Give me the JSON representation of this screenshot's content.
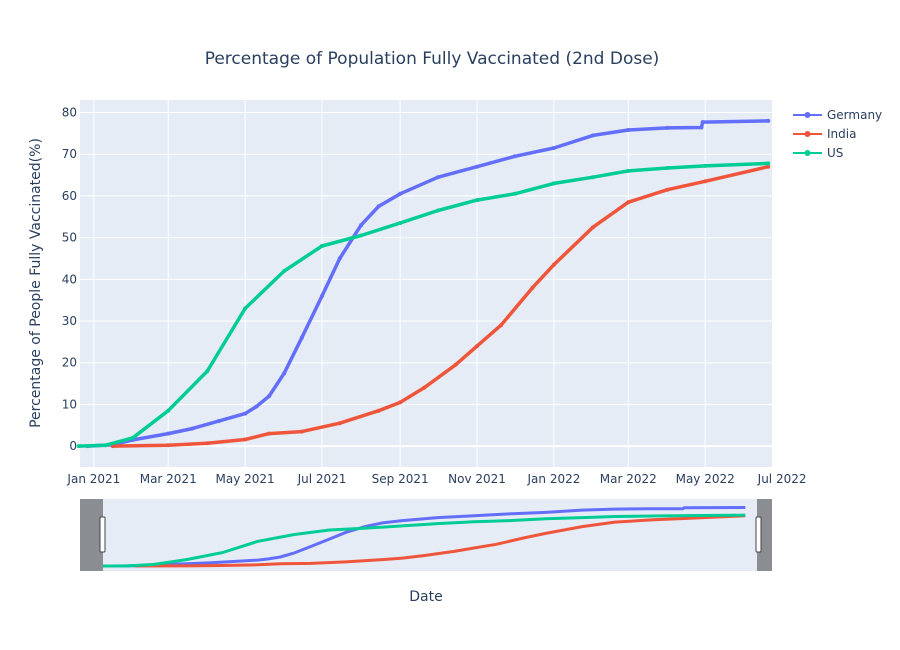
{
  "chart_data": {
    "type": "line",
    "title": "Percentage of Population Fully Vaccinated (2nd Dose)",
    "xlabel": "Date",
    "ylabel": "Percentage of People Fully Vaccinated(%)",
    "x_type": "date",
    "xlim": [
      "2020-12-21",
      "2022-06-23"
    ],
    "ylim": [
      -5,
      83
    ],
    "x_ticks": [
      "2021-01-01",
      "2021-03-01",
      "2021-05-01",
      "2021-07-01",
      "2021-09-01",
      "2021-11-01",
      "2022-01-01",
      "2022-03-01",
      "2022-05-01",
      "2022-07-01"
    ],
    "x_tick_labels": [
      "Jan 2021",
      "Mar 2021",
      "May 2021",
      "Jul 2021",
      "Sep 2021",
      "Nov 2021",
      "Jan 2022",
      "Mar 2022",
      "May 2022",
      "Jul 2022"
    ],
    "y_ticks": [
      0,
      10,
      20,
      30,
      40,
      50,
      60,
      70,
      80
    ],
    "y_tick_labels": [
      "0",
      "10",
      "20",
      "30",
      "40",
      "50",
      "60",
      "70",
      "80"
    ],
    "grid": true,
    "legend_position": "top-right",
    "range_slider": true,
    "series": [
      {
        "name": "Germany",
        "color": "#636efa",
        "points": [
          [
            "2020-12-27",
            0
          ],
          [
            "2021-01-15",
            0.3
          ],
          [
            "2021-02-01",
            1.5
          ],
          [
            "2021-03-01",
            3.0
          ],
          [
            "2021-03-20",
            4.2
          ],
          [
            "2021-04-10",
            6.0
          ],
          [
            "2021-05-01",
            7.8
          ],
          [
            "2021-05-10",
            9.5
          ],
          [
            "2021-05-20",
            12.0
          ],
          [
            "2021-06-01",
            17.5
          ],
          [
            "2021-06-15",
            26.0
          ],
          [
            "2021-07-01",
            36.0
          ],
          [
            "2021-07-15",
            45.0
          ],
          [
            "2021-08-01",
            53.0
          ],
          [
            "2021-08-15",
            57.5
          ],
          [
            "2021-09-01",
            60.5
          ],
          [
            "2021-10-01",
            64.5
          ],
          [
            "2021-11-01",
            67.0
          ],
          [
            "2021-12-01",
            69.5
          ],
          [
            "2022-01-01",
            71.5
          ],
          [
            "2022-02-01",
            74.5
          ],
          [
            "2022-03-01",
            75.8
          ],
          [
            "2022-04-01",
            76.3
          ],
          [
            "2022-04-28",
            76.4
          ],
          [
            "2022-04-29",
            77.7
          ],
          [
            "2022-06-20",
            78.0
          ]
        ]
      },
      {
        "name": "India",
        "color": "#ef553b",
        "points": [
          [
            "2021-01-16",
            0
          ],
          [
            "2021-03-01",
            0.2
          ],
          [
            "2021-04-01",
            0.7
          ],
          [
            "2021-05-01",
            1.6
          ],
          [
            "2021-05-20",
            3.0
          ],
          [
            "2021-06-15",
            3.5
          ],
          [
            "2021-07-15",
            5.5
          ],
          [
            "2021-08-15",
            8.5
          ],
          [
            "2021-09-01",
            10.5
          ],
          [
            "2021-09-20",
            14.0
          ],
          [
            "2021-10-15",
            19.5
          ],
          [
            "2021-11-01",
            24.0
          ],
          [
            "2021-11-20",
            29.0
          ],
          [
            "2021-12-15",
            38.0
          ],
          [
            "2022-01-01",
            43.5
          ],
          [
            "2022-02-01",
            52.5
          ],
          [
            "2022-03-01",
            58.5
          ],
          [
            "2022-04-01",
            61.5
          ],
          [
            "2022-05-01",
            63.5
          ],
          [
            "2022-06-20",
            67.0
          ]
        ]
      },
      {
        "name": "US",
        "color": "#00cc96",
        "points": [
          [
            "2020-12-20",
            0
          ],
          [
            "2021-01-10",
            0.2
          ],
          [
            "2021-02-01",
            2.0
          ],
          [
            "2021-03-01",
            8.5
          ],
          [
            "2021-04-01",
            18.0
          ],
          [
            "2021-05-01",
            33.0
          ],
          [
            "2021-06-01",
            42.0
          ],
          [
            "2021-07-01",
            48.0
          ],
          [
            "2021-08-01",
            50.5
          ],
          [
            "2021-09-01",
            53.5
          ],
          [
            "2021-10-01",
            56.5
          ],
          [
            "2021-11-01",
            59.0
          ],
          [
            "2021-12-01",
            60.5
          ],
          [
            "2022-01-01",
            63.0
          ],
          [
            "2022-02-01",
            64.5
          ],
          [
            "2022-03-01",
            66.0
          ],
          [
            "2022-04-01",
            66.7
          ],
          [
            "2022-05-01",
            67.2
          ],
          [
            "2022-06-20",
            67.8
          ]
        ]
      }
    ]
  }
}
